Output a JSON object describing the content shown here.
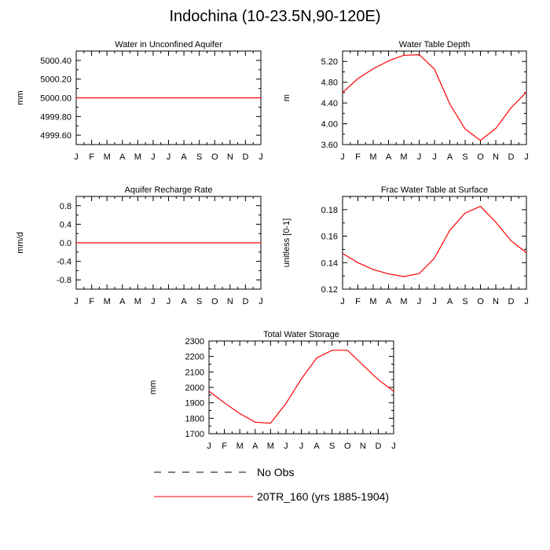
{
  "title": "Indochina (10-23.5N,90-120E)",
  "chart_data": [
    {
      "type": "line",
      "title": "Water in Unconfined Aquifer",
      "ylabel": "mm",
      "categories": [
        "J",
        "F",
        "M",
        "A",
        "M",
        "J",
        "J",
        "A",
        "S",
        "O",
        "N",
        "D",
        "J"
      ],
      "ylim": [
        4999.5,
        5000.5
      ],
      "yticks": [
        "5000.40",
        "5000.20",
        "5000.00",
        "4999.80",
        "4999.60"
      ],
      "series": [
        {
          "name": "20TR_160 (yrs 1885-1904)",
          "values": [
            5000,
            5000,
            5000,
            5000,
            5000,
            5000,
            5000,
            5000,
            5000,
            5000,
            5000,
            5000,
            5000
          ]
        }
      ]
    },
    {
      "type": "line",
      "title": "Water Table Depth",
      "ylabel": "m",
      "categories": [
        "J",
        "F",
        "M",
        "A",
        "M",
        "J",
        "J",
        "A",
        "S",
        "O",
        "N",
        "D",
        "J"
      ],
      "ylim": [
        3.6,
        5.4
      ],
      "yticks": [
        "5.20",
        "4.80",
        "4.40",
        "4.00",
        "3.60"
      ],
      "series": [
        {
          "name": "20TR_160 (yrs 1885-1904)",
          "values": [
            4.6,
            4.87,
            5.06,
            5.21,
            5.32,
            5.33,
            5.05,
            4.38,
            3.9,
            3.68,
            3.91,
            4.31,
            4.61
          ]
        }
      ]
    },
    {
      "type": "line",
      "title": "Aquifer Recharge Rate",
      "ylabel": "mm/d",
      "categories": [
        "J",
        "F",
        "M",
        "A",
        "M",
        "J",
        "J",
        "A",
        "S",
        "O",
        "N",
        "D",
        "J"
      ],
      "ylim": [
        -1.0,
        1.0
      ],
      "yticks": [
        "0.8",
        "0.4",
        "0.0",
        "-0.4",
        "-0.8"
      ],
      "series": [
        {
          "name": "20TR_160 (yrs 1885-1904)",
          "values": [
            0,
            0,
            0,
            0,
            0,
            0,
            0,
            0,
            0,
            0,
            0,
            0,
            0
          ]
        }
      ]
    },
    {
      "type": "line",
      "title": "Frac Water Table at Surface",
      "ylabel": "unitless [0-1]",
      "categories": [
        "J",
        "F",
        "M",
        "A",
        "M",
        "J",
        "J",
        "A",
        "S",
        "O",
        "N",
        "D",
        "J"
      ],
      "ylim": [
        0.12,
        0.19
      ],
      "yticks": [
        "0.18",
        "0.16",
        "0.14",
        "0.12"
      ],
      "series": [
        {
          "name": "20TR_160 (yrs 1885-1904)",
          "values": [
            0.147,
            0.14,
            0.1348,
            0.1315,
            0.1295,
            0.1318,
            0.1435,
            0.1645,
            0.1775,
            0.1825,
            0.1705,
            0.1565,
            0.1475
          ]
        }
      ]
    },
    {
      "type": "line",
      "title": "Total Water Storage",
      "ylabel": "mm",
      "categories": [
        "J",
        "F",
        "M",
        "A",
        "M",
        "J",
        "J",
        "A",
        "S",
        "O",
        "N",
        "D",
        "J"
      ],
      "ylim": [
        1700,
        2300
      ],
      "yticks": [
        "2300",
        "2200",
        "2100",
        "2000",
        "1900",
        "1800",
        "1700"
      ],
      "series": [
        {
          "name": "20TR_160 (yrs 1885-1904)",
          "values": [
            1975,
            1900,
            1830,
            1775,
            1768,
            1895,
            2055,
            2190,
            2240,
            2240,
            2145,
            2050,
            1975
          ]
        }
      ]
    }
  ],
  "legend": [
    {
      "label": "No Obs",
      "style": "dashed",
      "color": "#000000"
    },
    {
      "label": "20TR_160 (yrs 1885-1904)",
      "style": "solid",
      "color": "#ff0000"
    }
  ],
  "colors": {
    "series": "#ff0000",
    "axis": "#000000"
  }
}
